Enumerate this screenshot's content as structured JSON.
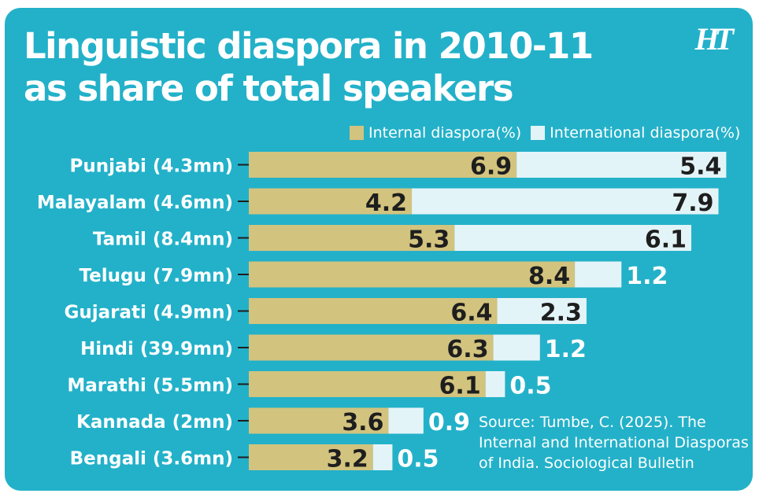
{
  "header": {
    "title_line1": "Linguistic diaspora in 2010-11",
    "title_line2": "as share of total speakers",
    "logo": "HT"
  },
  "colors": {
    "background": "#23b1c9",
    "internal": "#d2c37e",
    "international": "#e3f4f8",
    "text": "#ffffff",
    "value_text": "#1e1e1e"
  },
  "source": {
    "line1": "Source: Tumbe, C. (2025). The",
    "line2": "Internal and International Diasporas",
    "line3": "of India. Sociological Bulletin"
  },
  "chart_data": {
    "type": "bar",
    "orientation": "horizontal",
    "stacked": true,
    "title": "Linguistic diaspora in 2010-11 as share of total speakers",
    "categories": [
      "Punjabi (4.3mn)",
      "Malayalam (4.6mn)",
      "Tamil (8.4mn)",
      "Telugu (7.9mn)",
      "Gujarati (4.9mn)",
      "Hindi (39.9mn)",
      "Marathi (5.5mn)",
      "Kannada (2mn)",
      "Bengali (3.6mn)"
    ],
    "series": [
      {
        "name": "Internal diaspora(%)",
        "values": [
          6.9,
          4.2,
          5.3,
          8.4,
          6.4,
          6.3,
          6.1,
          3.6,
          3.2
        ]
      },
      {
        "name": "International diaspora(%)",
        "values": [
          5.4,
          7.9,
          6.1,
          1.2,
          2.3,
          1.2,
          0.5,
          0.9,
          0.5
        ]
      }
    ],
    "value_labels": [
      [
        "6.9",
        "4.2",
        "5.3",
        "8.4",
        "6.4",
        "6.3",
        "6.1",
        "3.6",
        "3.2"
      ],
      [
        "5.4",
        "7.9",
        "6.1",
        "1.2",
        "2.3",
        "1.2",
        "0.5",
        "0.9",
        "0.5"
      ]
    ],
    "xlim": [
      0,
      12.5
    ],
    "grid": false,
    "legend_position": "top"
  }
}
